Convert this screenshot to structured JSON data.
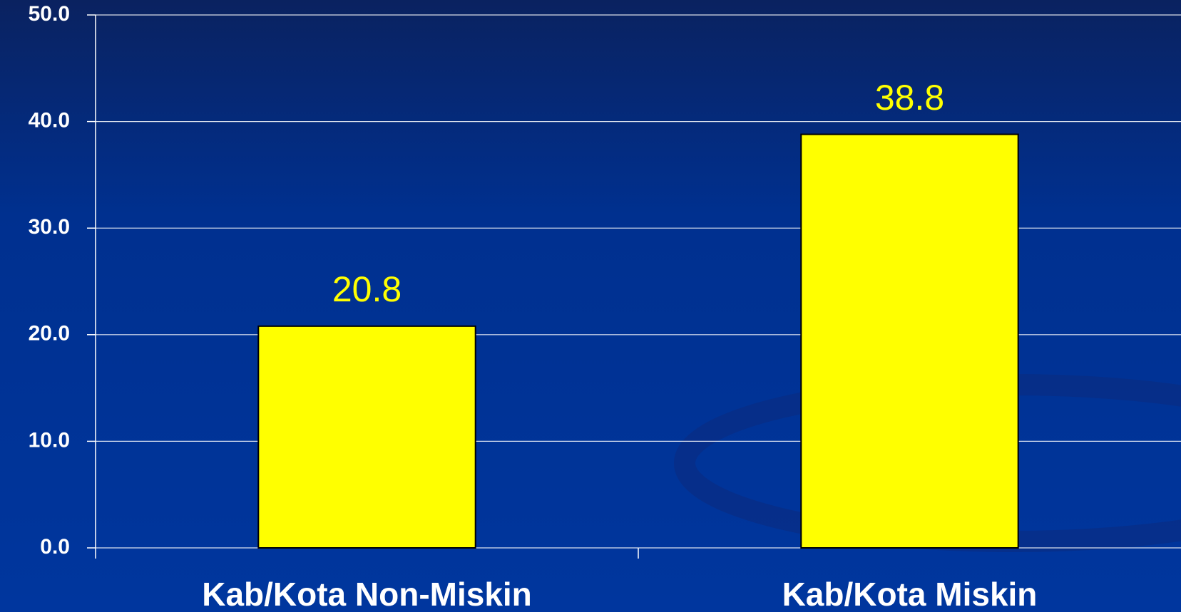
{
  "chart_data": {
    "type": "bar",
    "categories": [
      "Kab/Kota Non-Miskin",
      "Kab/Kota Miskin"
    ],
    "values": [
      20.8,
      38.8
    ],
    "color": "#ffff00",
    "ylim": [
      0,
      50
    ],
    "yticks": [
      {
        "value": 0,
        "label": "0.0"
      },
      {
        "value": 10,
        "label": "10.0"
      },
      {
        "value": 20,
        "label": "20.0"
      },
      {
        "value": 30,
        "label": "30.0"
      },
      {
        "value": 40,
        "label": "40.0"
      },
      {
        "value": 50,
        "label": "50.0"
      }
    ],
    "grid": true
  }
}
